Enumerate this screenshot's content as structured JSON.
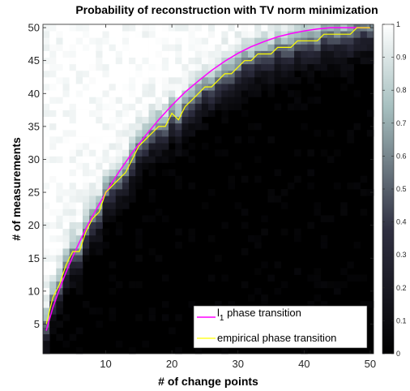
{
  "chart_data": {
    "type": "heatmap",
    "title": "Probability of reconstruction with TV norm minimization",
    "xlabel": "# of change points",
    "ylabel": "# of measurements",
    "xlim": [
      0.5,
      50.5
    ],
    "ylim": [
      0.5,
      50.5
    ],
    "xticks": [
      10,
      20,
      30,
      40,
      50
    ],
    "yticks": [
      5,
      10,
      15,
      20,
      25,
      30,
      35,
      40,
      45,
      50
    ],
    "colorbar": {
      "range": [
        0,
        1
      ],
      "ticks": [
        "0",
        "0.1",
        "0.2",
        "0.3",
        "0.4",
        "0.5",
        "0.6",
        "0.7",
        "0.8",
        "0.9",
        "1"
      ],
      "colormap": "bone"
    },
    "heatmap_model": "probability ≈ 1 for measurements above the empirical phase transition, ≈ 0 below, with a soft transition band",
    "series": [
      {
        "name": "l_1 phase transition",
        "color": "#ff00ff",
        "x": [
          1,
          2,
          3,
          4,
          5,
          6,
          7,
          8,
          9,
          10,
          12,
          14,
          16,
          18,
          20,
          22,
          24,
          26,
          28,
          30,
          32,
          34,
          36,
          38,
          40,
          42,
          44,
          46,
          48,
          50
        ],
        "y": [
          4,
          7.5,
          10.3,
          12.9,
          15.2,
          17.4,
          19.5,
          21.4,
          23.2,
          24.9,
          28.1,
          31.0,
          33.6,
          36.0,
          38.2,
          40.2,
          41.9,
          43.5,
          44.9,
          46.1,
          47.1,
          47.9,
          48.6,
          49.1,
          49.5,
          49.8,
          50,
          50,
          50,
          50
        ]
      },
      {
        "name": "empirical phase transition",
        "color": "#ffff00",
        "x": [
          1,
          2,
          3,
          4,
          5,
          6,
          7,
          8,
          9,
          10,
          11,
          12,
          13,
          14,
          15,
          16,
          17,
          18,
          19,
          20,
          21,
          22,
          23,
          24,
          25,
          26,
          27,
          28,
          29,
          30,
          31,
          32,
          33,
          34,
          35,
          36,
          37,
          38,
          39,
          40,
          41,
          42,
          43,
          44,
          45,
          46,
          47,
          48,
          49,
          50
        ],
        "y": [
          5,
          9,
          11,
          14,
          16,
          16,
          19,
          21,
          22,
          25,
          26,
          27,
          28,
          30,
          32,
          33,
          34,
          35,
          35,
          37,
          36,
          38,
          39,
          40,
          41,
          41,
          42,
          43,
          43,
          44,
          45,
          45,
          46,
          46,
          46,
          47,
          47,
          47,
          48,
          48,
          48,
          48,
          49,
          49,
          49,
          49,
          49,
          50,
          50,
          50
        ]
      }
    ],
    "legend": {
      "placement": "bottom-right",
      "entries": [
        {
          "main": "l",
          "sub": "1",
          "rest": " phase transition",
          "color": "#ff00ff"
        },
        {
          "main": "empirical phase transition",
          "sub": "",
          "rest": "",
          "color": "#ffff00"
        }
      ]
    }
  }
}
